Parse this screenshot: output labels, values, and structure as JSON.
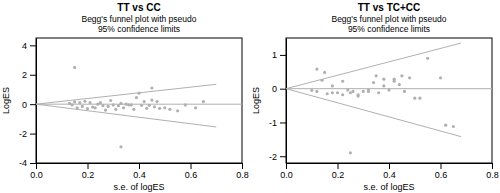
{
  "chart_data": [
    {
      "type": "scatter",
      "title": "TT vs CC",
      "subtitle": "Begg's funnel plot with pseudo\n95% confidence limits",
      "xlabel": "s.e. of logES",
      "ylabel": "LogES",
      "xlim": [
        0,
        0.8
      ],
      "ylim": [
        -4,
        4.5
      ],
      "xticks": [
        {
          "value": 0,
          "label": "0.0"
        },
        0.2,
        0.4,
        0.6,
        0.8
      ],
      "yticks": [
        -4,
        -2,
        0,
        2,
        4
      ],
      "series": [
        {
          "type": "line",
          "color": "#b0b0b0",
          "x": [
            0,
            0.8
          ],
          "values": [
            0,
            0
          ]
        },
        {
          "type": "line",
          "color": "#b0b0b0",
          "x": [
            0,
            0.7
          ],
          "values": [
            0,
            1.35
          ]
        },
        {
          "type": "line",
          "color": "#b0b0b0",
          "x": [
            0,
            0.7
          ],
          "values": [
            0,
            -1.55
          ]
        },
        {
          "type": "scatter",
          "color": "#b0b0b0",
          "x": [
            0.13,
            0.14,
            0.15,
            0.16,
            0.17,
            0.18,
            0.19,
            0.2,
            0.21,
            0.22,
            0.23,
            0.24,
            0.25,
            0.26,
            0.27,
            0.28,
            0.29,
            0.3,
            0.31,
            0.32,
            0.33,
            0.34,
            0.35,
            0.36,
            0.37,
            0.38,
            0.39,
            0.4,
            0.41,
            0.42,
            0.43,
            0.44,
            0.45,
            0.46,
            0.47,
            0.48,
            0.5,
            0.52,
            0.55,
            0.58,
            0.62,
            0.65,
            0.15,
            0.33,
            0.45
          ],
          "values": [
            0.05,
            -0.05,
            0.15,
            -0.25,
            0.1,
            -0.15,
            0.2,
            -0.3,
            0.1,
            -0.2,
            -0.25,
            0.0,
            0.1,
            -0.1,
            -0.4,
            -0.15,
            0.25,
            -0.05,
            -0.35,
            -0.1,
            0.05,
            -0.25,
            0.0,
            -0.05,
            -0.05,
            -0.35,
            0.45,
            0.75,
            -0.08,
            0.18,
            -0.28,
            -0.08,
            0.28,
            -0.18,
            0.18,
            -0.28,
            -0.25,
            -0.35,
            -0.45,
            -0.05,
            -0.25,
            0.18,
            2.5,
            -2.9,
            1.1
          ]
        }
      ]
    },
    {
      "type": "scatter",
      "title": "TT vs TC+CC",
      "subtitle": "Begg's funnel plot with pseudo\n95% confidence limits",
      "xlabel": "s.e. of logES",
      "ylabel": "LogES",
      "xlim": [
        0,
        0.8
      ],
      "ylim": [
        -2.2,
        1.5
      ],
      "xticks": [
        {
          "value": 0,
          "label": "0.0"
        },
        0.2,
        0.4,
        0.6,
        0.8
      ],
      "yticks": [
        -2,
        -1,
        0,
        1
      ],
      "series": [
        {
          "type": "line",
          "color": "#b0b0b0",
          "x": [
            0,
            0.8
          ],
          "values": [
            0,
            0
          ]
        },
        {
          "type": "line",
          "color": "#b0b0b0",
          "x": [
            0,
            0.68
          ],
          "values": [
            0,
            1.35
          ]
        },
        {
          "type": "line",
          "color": "#b0b0b0",
          "x": [
            0,
            0.68
          ],
          "values": [
            0,
            -1.42
          ]
        },
        {
          "type": "scatter",
          "color": "#b0b0b0",
          "x": [
            0.1,
            0.12,
            0.14,
            0.16,
            0.18,
            0.2,
            0.22,
            0.24,
            0.26,
            0.28,
            0.3,
            0.32,
            0.34,
            0.36,
            0.38,
            0.4,
            0.42,
            0.44,
            0.46,
            0.5,
            0.52,
            0.55,
            0.62,
            0.65,
            0.12,
            0.15,
            0.18,
            0.22,
            0.25,
            0.28,
            0.32,
            0.35,
            0.38,
            0.42,
            0.45,
            0.48,
            0.25,
            0.6
          ],
          "values": [
            -0.05,
            -0.08,
            0.25,
            -0.15,
            0.08,
            -0.12,
            0.22,
            -0.04,
            -0.08,
            -0.18,
            -0.08,
            -0.04,
            0.18,
            -0.12,
            0.08,
            -0.04,
            0.28,
            0.12,
            -0.08,
            -0.28,
            -0.28,
            0.9,
            -1.08,
            -1.12,
            0.58,
            0.48,
            -0.12,
            -0.18,
            -0.12,
            -0.22,
            -0.08,
            0.38,
            0.28,
            0.22,
            0.38,
            0.32,
            -1.9,
            0.32
          ]
        }
      ]
    }
  ]
}
